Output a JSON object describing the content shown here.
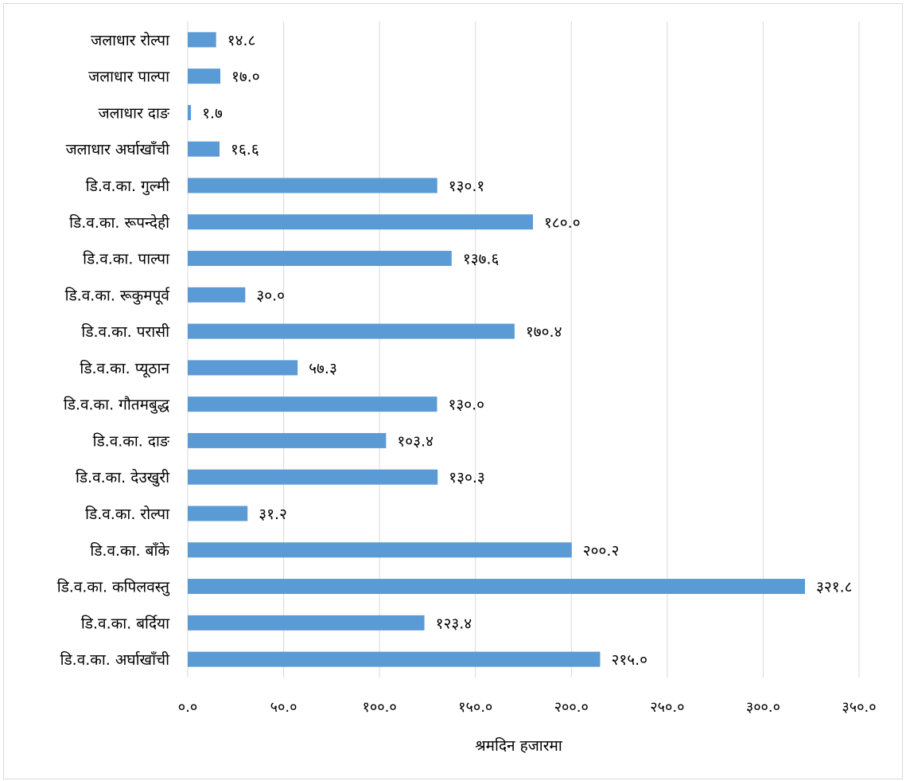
{
  "chart_data": {
    "type": "bar",
    "orientation": "horizontal",
    "categories": [
      "जलाधार रोल्पा",
      "जलाधार पाल्पा",
      "जलाधार दाङ",
      "जलाधार अर्घाखाँची",
      "डि.व.का. गुल्मी",
      "डि.व.का. रूपन्देही",
      "डि.व.का. पाल्पा",
      "डि.व.का. रूकुमपूर्व",
      "डि.व.का. परासी",
      "डि.व.का. प्यूठान",
      "डि.व.का. गौतमबुद्ध",
      "डि.व.का. दाङ",
      "डि.व.का. देउखुरी",
      "डि.व.का. रोल्पा",
      "डि.व.का. बाँके",
      "डि.व.का. कपिलवस्तु",
      "डि.व.का. बर्दिया",
      "डि.व.का. अर्घाखाँची"
    ],
    "values": [
      14.8,
      17.0,
      1.7,
      16.6,
      130.1,
      180.0,
      137.6,
      30.0,
      170.4,
      57.3,
      130.0,
      103.4,
      130.3,
      31.2,
      200.2,
      321.8,
      123.4,
      215.0
    ],
    "value_labels": [
      "१४.८",
      "१७.०",
      "१.७",
      "१६.६",
      "१३०.१",
      "१८०.०",
      "१३७.६",
      "३०.०",
      "१७०.४",
      "५७.३",
      "१३०.०",
      "१०३.४",
      "१३०.३",
      "३१.२",
      "२००.२",
      "३२१.८",
      "१२३.४",
      "२१५.०"
    ],
    "xlim": [
      0,
      350
    ],
    "x_ticks": [
      0,
      50,
      100,
      150,
      200,
      250,
      300,
      350
    ],
    "x_tick_labels": [
      "०.०",
      "५०.०",
      "१००.०",
      "१५०.०",
      "२००.०",
      "२५०.०",
      "३००.०",
      "३५०.०"
    ],
    "xlabel": "श्रमदिन हजारमा",
    "ylabel": "",
    "title": "",
    "grid": "vertical",
    "legend": "none",
    "bar_color": "#5b9bd5",
    "grid_color": "#d9d9d9"
  }
}
